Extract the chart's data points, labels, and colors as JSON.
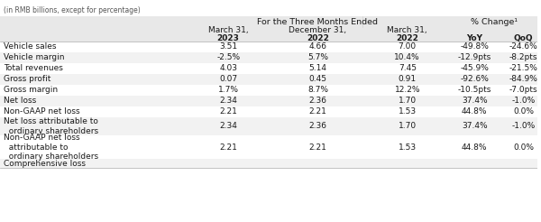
{
  "subtitle": "(in RMB billions, except for percentage)",
  "col_headers_line1": [
    "",
    "For the Three Months Ended",
    "",
    "",
    "% Change¹",
    ""
  ],
  "col_headers_line2": [
    "",
    "March 31,",
    "December 31,",
    "March 31,",
    "",
    ""
  ],
  "col_headers_line3": [
    "",
    "2023",
    "2022",
    "2022",
    "YoY",
    "QoQ"
  ],
  "rows": [
    {
      "label": "Vehicle sales",
      "v1": "3.51",
      "v2": "4.66",
      "v3": "7.00",
      "yoy": "-49.8%",
      "qoq": "-24.6%",
      "shade": false
    },
    {
      "label": "Vehicle margin",
      "v1": "-2.5%",
      "v2": "5.7%",
      "v3": "10.4%",
      "yoy": "-12.9pts",
      "qoq": "-8.2pts",
      "shade": true
    },
    {
      "label": "Total revenues",
      "v1": "4.03",
      "v2": "5.14",
      "v3": "7.45",
      "yoy": "-45.9%",
      "qoq": "-21.5%",
      "shade": false
    },
    {
      "label": "Gross profit",
      "v1": "0.07",
      "v2": "0.45",
      "v3": "0.91",
      "yoy": "-92.6%",
      "qoq": "-84.9%",
      "shade": true
    },
    {
      "label": "Gross margin",
      "v1": "1.7%",
      "v2": "8.7%",
      "v3": "12.2%",
      "yoy": "-10.5pts",
      "qoq": "-7.0pts",
      "shade": false
    },
    {
      "label": "Net loss",
      "v1": "2.34",
      "v2": "2.36",
      "v3": "1.70",
      "yoy": "37.4%",
      "qoq": "-1.0%",
      "shade": true
    },
    {
      "label": "Non-GAAP net loss",
      "v1": "2.21",
      "v2": "2.21",
      "v3": "1.53",
      "yoy": "44.8%",
      "qoq": "0.0%",
      "shade": false
    },
    {
      "label": "Net loss attributable to\n  ordinary shareholders",
      "v1": "2.34",
      "v2": "2.36",
      "v3": "1.70",
      "yoy": "37.4%",
      "qoq": "-1.0%",
      "shade": true
    },
    {
      "label": "Non-GAAP net loss\n  attributable to\n  ordinary shareholders",
      "v1": "2.21",
      "v2": "2.21",
      "v3": "1.53",
      "yoy": "44.8%",
      "qoq": "0.0%",
      "shade": false
    },
    {
      "label": "Comprehensive loss",
      "v1": "",
      "v2": "",
      "v3": "",
      "yoy": "",
      "qoq": "",
      "shade": true
    }
  ],
  "header_bg": "#e8e8e8",
  "shade_bg": "#f2f2f2",
  "white_bg": "#ffffff",
  "text_color": "#1a1a1a",
  "font_size": 6.5,
  "header_font_size": 6.8
}
